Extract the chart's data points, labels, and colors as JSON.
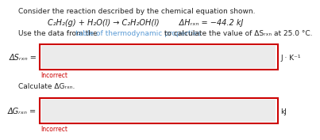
{
  "background_color": "#ffffff",
  "title_text": "Consider the reaction described by the chemical equation shown.",
  "eq_line1": "C₂H₂(g) + H₂O(l) → C₂H₂OH(l)        ΔHᵣₓₙ = −44.2 kJ",
  "instr_part1": "Use the data from the ",
  "instr_part2": "table of thermodynamic properties",
  "instr_part3": " to calculate the value of ΔSᵣₓₙ at 25.0 °C.",
  "link_color": "#5b9bd5",
  "label1": "ΔSᵣₓₙ =",
  "unit1": "J · K⁻¹",
  "incorrect1": "Incorrect",
  "section2_text": "Calculate ΔGᵣₓₙ.",
  "label2": "ΔGᵣₓₙ =",
  "unit2": "kJ",
  "incorrect2": "Incorrect",
  "input_box_color": "#ebebeb",
  "input_border_color": "#cc0000",
  "incorrect_color": "#cc0000",
  "text_color": "#222222",
  "font_size_body": 6.5,
  "font_size_eq": 7.0,
  "font_size_label": 7.0,
  "font_size_incorrect": 5.5
}
